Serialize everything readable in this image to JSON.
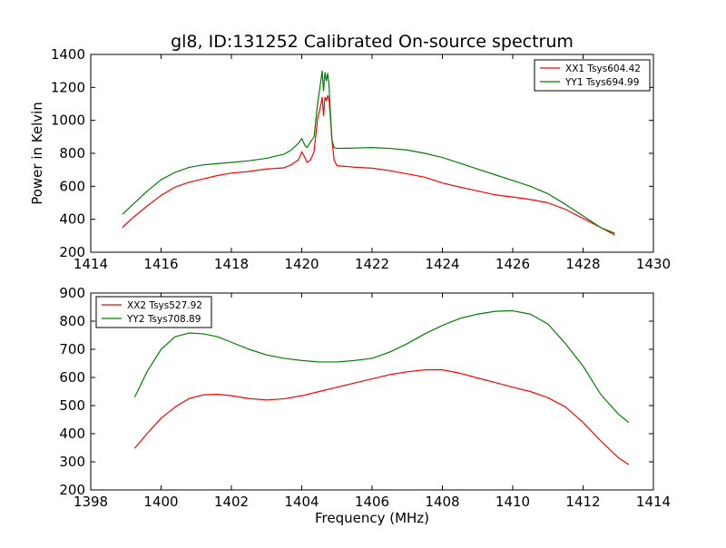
{
  "figure": {
    "title": "gl8, ID:131252 Calibrated On-source spectrum",
    "ylabel": "Power in Kelvin",
    "xlabel": "Frequency (MHz)"
  },
  "chart_data": [
    {
      "type": "line",
      "title": "gl8, ID:131252 Calibrated On-source spectrum",
      "xlabel": "",
      "ylabel": "Power in Kelvin",
      "xlim": [
        1414,
        1430
      ],
      "ylim": [
        200,
        1400
      ],
      "xticks": [
        1414,
        1416,
        1418,
        1420,
        1422,
        1424,
        1426,
        1428,
        1430
      ],
      "yticks": [
        200,
        400,
        600,
        800,
        1000,
        1200,
        1400
      ],
      "legend_position": "top-right",
      "series": [
        {
          "name": "XX1 Tsys604.42",
          "color": "#ff0000",
          "x": [
            1414.9,
            1415.2,
            1415.6,
            1416.0,
            1416.4,
            1416.8,
            1417.2,
            1417.6,
            1418.0,
            1418.5,
            1419.0,
            1419.5,
            1419.7,
            1419.9,
            1419.95,
            1420.0,
            1420.1,
            1420.15,
            1420.25,
            1420.35,
            1420.45,
            1420.55,
            1420.58,
            1420.62,
            1420.66,
            1420.7,
            1420.74,
            1420.78,
            1420.82,
            1420.86,
            1420.92,
            1421.0,
            1421.5,
            1422.0,
            1422.5,
            1423.0,
            1423.5,
            1424.0,
            1424.5,
            1425.0,
            1425.5,
            1426.0,
            1426.5,
            1427.0,
            1427.5,
            1428.0,
            1428.5,
            1428.9
          ],
          "values": [
            350,
            410,
            480,
            545,
            595,
            625,
            645,
            665,
            680,
            690,
            705,
            712,
            730,
            760,
            780,
            810,
            770,
            745,
            760,
            810,
            1010,
            1100,
            1140,
            1030,
            1140,
            1120,
            1150,
            1120,
            1000,
            880,
            760,
            725,
            716,
            710,
            695,
            675,
            655,
            620,
            595,
            572,
            548,
            535,
            520,
            500,
            460,
            405,
            350,
            305
          ]
        },
        {
          "name": "YY1 Tsys694.99",
          "color": "#008000",
          "x": [
            1414.9,
            1415.2,
            1415.6,
            1416.0,
            1416.4,
            1416.8,
            1417.2,
            1417.6,
            1418.0,
            1418.5,
            1419.0,
            1419.5,
            1419.7,
            1419.8,
            1419.9,
            1420.0,
            1420.1,
            1420.15,
            1420.25,
            1420.35,
            1420.45,
            1420.55,
            1420.58,
            1420.62,
            1420.66,
            1420.7,
            1420.74,
            1420.78,
            1420.82,
            1420.86,
            1420.92,
            1421.0,
            1421.5,
            1422.0,
            1422.5,
            1423.0,
            1423.5,
            1424.0,
            1424.5,
            1425.0,
            1425.5,
            1426.0,
            1426.5,
            1427.0,
            1427.5,
            1428.0,
            1428.5,
            1428.9
          ],
          "values": [
            430,
            490,
            570,
            640,
            685,
            715,
            730,
            738,
            745,
            755,
            770,
            795,
            820,
            840,
            860,
            890,
            845,
            835,
            870,
            900,
            1100,
            1250,
            1300,
            1180,
            1290,
            1240,
            1285,
            1200,
            1020,
            880,
            835,
            830,
            832,
            835,
            830,
            820,
            800,
            775,
            740,
            705,
            670,
            635,
            600,
            555,
            490,
            420,
            350,
            315
          ]
        }
      ]
    },
    {
      "type": "line",
      "title": "",
      "xlabel": "Frequency (MHz)",
      "ylabel": "",
      "xlim": [
        1398,
        1414
      ],
      "ylim": [
        200,
        900
      ],
      "xticks": [
        1398,
        1400,
        1402,
        1404,
        1406,
        1408,
        1410,
        1412,
        1414
      ],
      "yticks": [
        200,
        300,
        400,
        500,
        600,
        700,
        800,
        900
      ],
      "legend_position": "top-left",
      "series": [
        {
          "name": "XX2 Tsys527.92",
          "color": "#ff0000",
          "x": [
            1399.25,
            1399.6,
            1400.0,
            1400.4,
            1400.8,
            1401.2,
            1401.6,
            1402.0,
            1402.5,
            1403.0,
            1403.5,
            1404.0,
            1404.5,
            1405.0,
            1405.5,
            1406.0,
            1406.5,
            1407.0,
            1407.5,
            1408.0,
            1408.5,
            1409.0,
            1409.5,
            1410.0,
            1410.5,
            1411.0,
            1411.5,
            1412.0,
            1412.5,
            1413.0,
            1413.3
          ],
          "values": [
            348,
            400,
            455,
            495,
            525,
            538,
            540,
            535,
            525,
            520,
            524,
            535,
            550,
            565,
            580,
            595,
            610,
            620,
            627,
            627,
            615,
            598,
            582,
            565,
            550,
            528,
            495,
            440,
            375,
            315,
            290
          ]
        },
        {
          "name": "YY2 Tsys708.89",
          "color": "#008000",
          "x": [
            1399.25,
            1399.6,
            1400.0,
            1400.4,
            1400.8,
            1401.2,
            1401.6,
            1402.0,
            1402.5,
            1403.0,
            1403.5,
            1404.0,
            1404.5,
            1405.0,
            1405.5,
            1406.0,
            1406.5,
            1407.0,
            1407.5,
            1408.0,
            1408.5,
            1409.0,
            1409.5,
            1410.0,
            1410.5,
            1411.0,
            1411.5,
            1412.0,
            1412.5,
            1413.0,
            1413.3
          ],
          "values": [
            530,
            620,
            700,
            745,
            758,
            755,
            745,
            725,
            700,
            680,
            668,
            660,
            655,
            655,
            660,
            668,
            690,
            720,
            755,
            785,
            810,
            825,
            835,
            837,
            825,
            790,
            720,
            640,
            540,
            470,
            440
          ]
        }
      ]
    }
  ]
}
